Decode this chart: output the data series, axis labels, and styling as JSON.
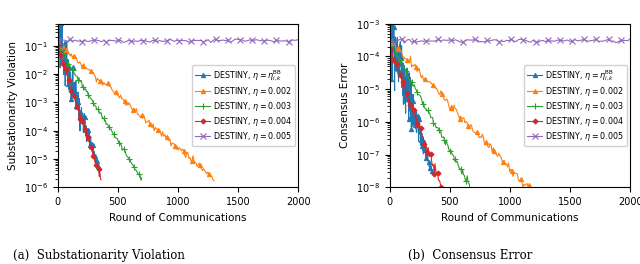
{
  "title_a": "(a)  Substationarity Violation",
  "title_b": "(b)  Consensus Error",
  "xlabel": "Round of Communications",
  "ylabel_a": "Substationarity Violation",
  "ylabel_b": "Consensus Error",
  "xlim": [
    0,
    2000
  ],
  "ylim_a": [
    1e-06,
    0.6
  ],
  "ylim_b": [
    1e-08,
    0.001
  ],
  "legend_labels": [
    "DESTINY, $\\eta = \\eta_{i,k}^{\\mathrm{BB}}$",
    "DESTINY, $\\eta = 0.002$",
    "DESTINY, $\\eta = 0.003$",
    "DESTINY, $\\eta = 0.004$",
    "DESTINY, $\\eta = 0.005$"
  ],
  "colors": [
    "#1f77b4",
    "#ff7f0e",
    "#2ca02c",
    "#d62728",
    "#9467bd"
  ],
  "markers": [
    "^",
    "^",
    "+",
    "D",
    "x"
  ],
  "markersizes": [
    3,
    3,
    4,
    2.5,
    4
  ],
  "linewidths": [
    0.8,
    0.8,
    0.8,
    0.8,
    0.8
  ]
}
